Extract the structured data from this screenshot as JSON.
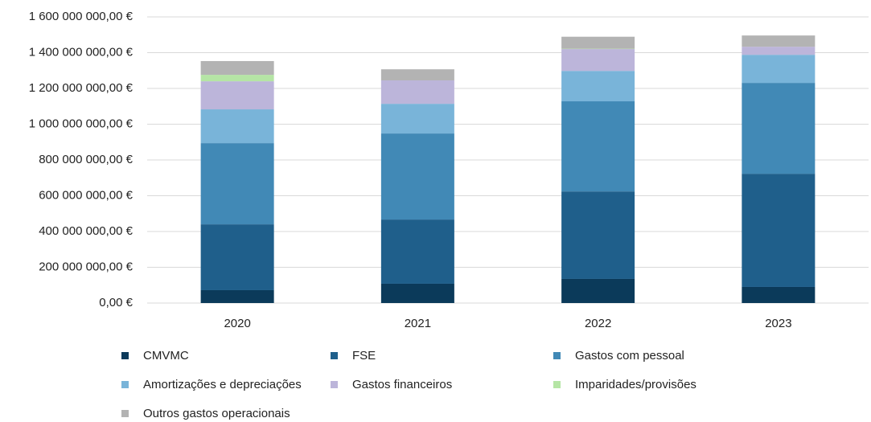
{
  "chart_data": {
    "type": "stacked_bar",
    "categories": [
      "2020",
      "2021",
      "2022",
      "2023"
    ],
    "series": [
      {
        "name": "CMVMC",
        "color": "#0b3a5a",
        "values": [
          72000000,
          108000000,
          135000000,
          90000000
        ]
      },
      {
        "name": "FSE",
        "color": "#1f5f8b",
        "values": [
          368000000,
          359000000,
          489000000,
          633000000
        ]
      },
      {
        "name": "Gastos com pessoal",
        "color": "#4189b6",
        "values": [
          454000000,
          481000000,
          504000000,
          508000000
        ]
      },
      {
        "name": "Amortizações e depreciações",
        "color": "#79b4d9",
        "values": [
          189000000,
          166000000,
          170000000,
          157000000
        ]
      },
      {
        "name": "Gastos financeiros",
        "color": "#bcb5da",
        "values": [
          157000000,
          131000000,
          122000000,
          45000000
        ]
      },
      {
        "name": "Imparidades/provisões",
        "color": "#b5e5a5",
        "values": [
          36000000,
          0,
          2000000,
          0
        ]
      },
      {
        "name": "Outros gastos operacionais",
        "color": "#b3b3b3",
        "values": [
          77000000,
          62000000,
          67000000,
          63000000
        ]
      }
    ],
    "ylim": [
      0,
      1600000000
    ],
    "yticks": [
      {
        "value": 0,
        "label": "0,00 €"
      },
      {
        "value": 200000000,
        "label": "200 000 000,00 €"
      },
      {
        "value": 400000000,
        "label": "400 000 000,00 €"
      },
      {
        "value": 600000000,
        "label": "600 000 000,00 €"
      },
      {
        "value": 800000000,
        "label": "800 000 000,00 €"
      },
      {
        "value": 1000000000,
        "label": "1 000 000 000,00 €"
      },
      {
        "value": 1200000000,
        "label": "1 200 000 000,00 €"
      },
      {
        "value": 1400000000,
        "label": "1 400 000 000,00 €"
      },
      {
        "value": 1600000000,
        "label": "1 600 000 000,00 €"
      }
    ],
    "grid": true,
    "legend": "bottom"
  }
}
